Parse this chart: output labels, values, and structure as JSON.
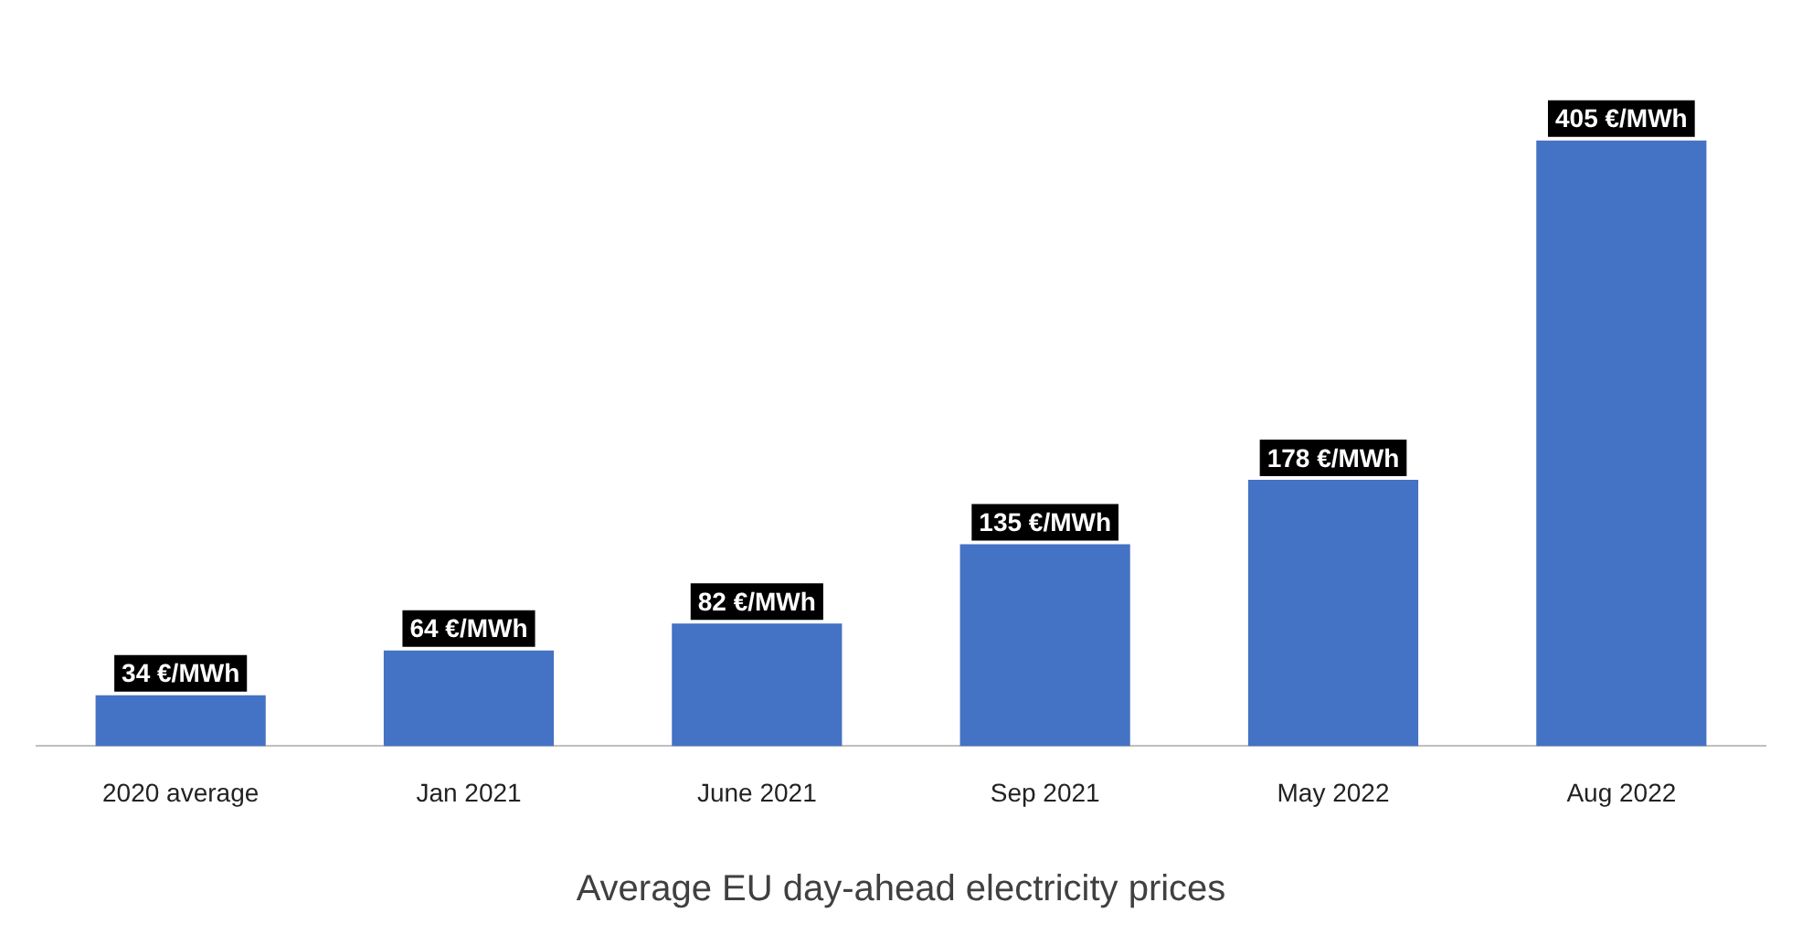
{
  "chart_data": {
    "type": "bar",
    "title": "Average EU day-ahead electricity prices",
    "categories": [
      "2020 average",
      "Jan 2021",
      "June 2021",
      "Sep 2021",
      "May 2022",
      "Aug 2022"
    ],
    "values": [
      34,
      64,
      82,
      135,
      178,
      405
    ],
    "value_labels": [
      "34 €/MWh",
      "64 €/MWh",
      "82 €/MWh",
      "135 €/MWh",
      "178 €/MWh",
      "405 €/MWh"
    ],
    "color": "#4472c4",
    "tick_labels": "x"
  }
}
